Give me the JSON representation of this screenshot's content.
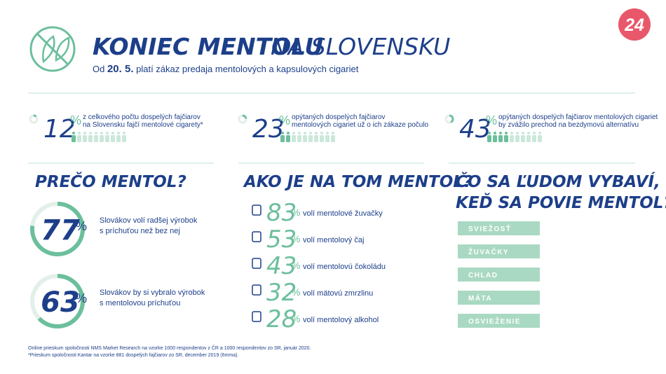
{
  "header": {
    "title_bold": "KONIEC MENTOLU",
    "title_light": "NA SLOVENSKU",
    "subtitle_pre": "Od",
    "subtitle_date": "20. 5.",
    "subtitle_post": "platí zákaz predaja mentolových a kapsulových cigariet",
    "logo": "24"
  },
  "unit": "%",
  "top_stats": [
    {
      "value": 12,
      "text": [
        "z celkového počtu dospelých fajčiarov",
        "na Slovensku fajčí mentolové cigarety*"
      ]
    },
    {
      "value": 23,
      "text": [
        "opýtaných dospelých fajčiarov",
        "mentolových cigariet už o ich zákaze počulo"
      ]
    },
    {
      "value": 43,
      "text": [
        "opýtaných dospelých fajčiarov mentolových cigariet",
        "by zvážilo prechod na bezdymovú alternatívu"
      ]
    }
  ],
  "why": {
    "title": "PREČO MENTOL?",
    "items": [
      {
        "value": 77,
        "text": [
          "Slovákov volí radšej výrobok",
          "s príchuťou než bez nej"
        ]
      },
      {
        "value": 63,
        "text": [
          "Slovákov by si vybralo výrobok",
          "s mentolovou príchuťou"
        ]
      }
    ]
  },
  "how": {
    "title": "AKO JE NA TOM  MENTOL?",
    "items": [
      {
        "value": 83,
        "label": "volí mentolové žuvačky"
      },
      {
        "value": 53,
        "label": "volí mentolový čaj"
      },
      {
        "value": 43,
        "label": "volí mentolovú čokoládu"
      },
      {
        "value": 32,
        "label": "volí mätovú zmrzlinu"
      },
      {
        "value": 28,
        "label": "volí mentolový alkohol"
      }
    ]
  },
  "associations": {
    "title": [
      "ČO SA ĽUDOM VYBAVÍ,",
      "KEĎ SA POVIE MENTOL?"
    ],
    "items": [
      "SVIEŽOSŤ",
      "ŽUVAČKY",
      "CHLAD",
      "MÁTA",
      "OSVIEŽENIE"
    ]
  },
  "footnotes": [
    "Online prieskum spoločnosti NMS Market Research na vzorke 1000 respondentov z ČR a 1000 respondentov zo SR, január 2020.",
    "*Prieskum spoločnosti Kantar na vzorke 881 dospelých fajčiarov zo SR, december 2019 (6mma)."
  ]
}
